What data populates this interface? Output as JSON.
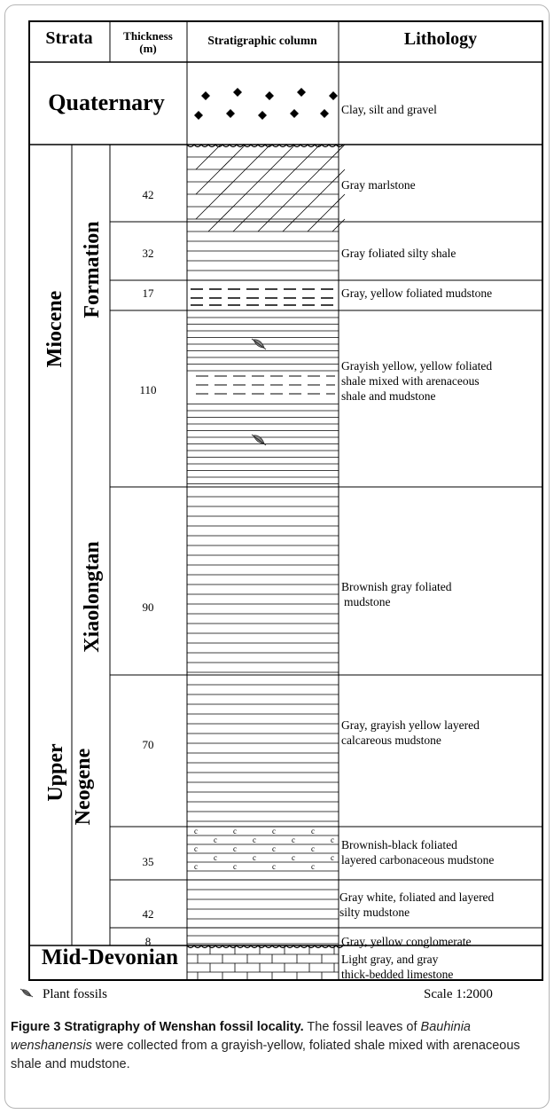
{
  "headers": {
    "strata": "Strata",
    "thickness": "Thickness",
    "thickness_unit": "(m)",
    "column": "Stratigraphic column",
    "lithology": "Lithology"
  },
  "strata": {
    "quaternary": "Quaternary",
    "miocene": "Miocene",
    "upper": "Upper",
    "neogene": "Neogene",
    "xiaolongtan": "Xiaolongtan",
    "formation": "Formation",
    "mid_devonian": "Mid-Devonian"
  },
  "rows": [
    {
      "thickness": "",
      "pattern": "diamonds",
      "lithology": [
        "Clay, silt and gravel"
      ]
    },
    {
      "thickness": "42",
      "pattern": "marl",
      "lithology": [
        "Gray marlstone"
      ]
    },
    {
      "thickness": "32",
      "pattern": "lines",
      "lithology": [
        "Gray foliated silty shale"
      ]
    },
    {
      "thickness": "17",
      "pattern": "dashed",
      "lithology": [
        "Gray, yellow foliated mudstone"
      ]
    },
    {
      "thickness": "110",
      "pattern": "dense-lines-fossil",
      "lithology": [
        "Grayish yellow, yellow foliated",
        "shale mixed with arenaceous",
        "shale and mudstone"
      ]
    },
    {
      "thickness": "90",
      "pattern": "lines",
      "lithology": [
        "Brownish gray foliated",
        "mudstone"
      ]
    },
    {
      "thickness": "70",
      "pattern": "lines",
      "lithology": [
        "Gray, grayish yellow layered",
        "calcareous mudstone"
      ]
    },
    {
      "thickness": "35",
      "pattern": "carbonaceous",
      "lithology": [
        "Brownish-black foliated",
        "layered carbonaceous mudstone"
      ]
    },
    {
      "thickness": "42",
      "pattern": "lines",
      "lithology": [
        "Gray white, foliated and layered",
        "silty mudstone"
      ]
    },
    {
      "thickness": "8",
      "pattern": "lines",
      "lithology": [
        "Gray, yellow conglomerate"
      ]
    },
    {
      "thickness": "",
      "pattern": "limestone",
      "lithology": [
        "Light gray, and gray",
        "thick-bedded limestone"
      ]
    }
  ],
  "legend": {
    "fossil_label": "Plant fossils",
    "scale": "Scale 1:2000"
  },
  "caption": {
    "title": "Figure 3 Stratigraphy of Wenshan fossil locality.",
    "text_before": " The fossil leaves of ",
    "species": "Bauhinia wenshanensis",
    "text_after": " were collected from a grayish-yellow, foliated shale mixed with arenaceous shale and mudstone."
  }
}
